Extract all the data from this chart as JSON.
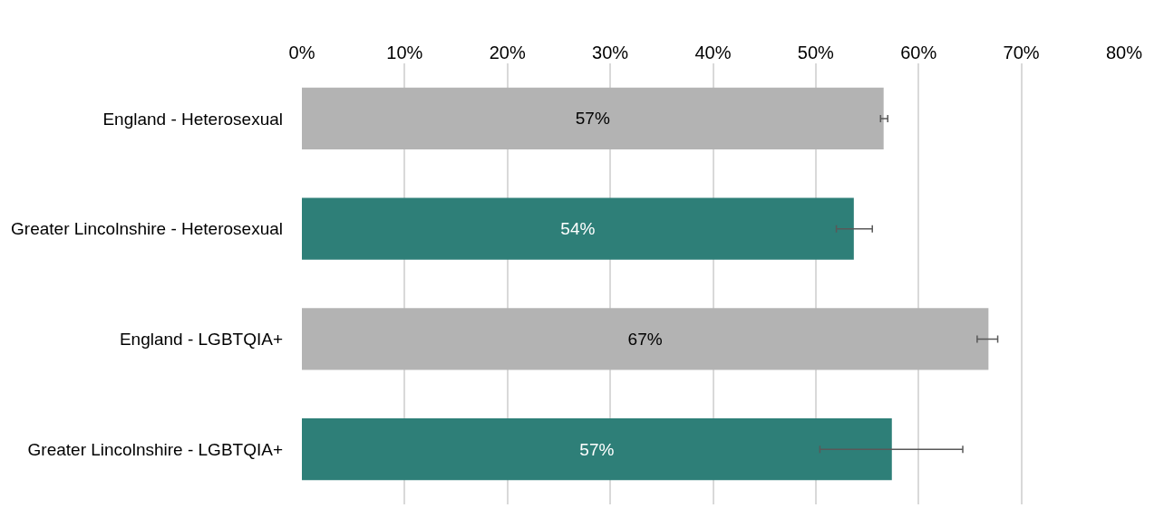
{
  "chart_data": {
    "type": "bar",
    "orientation": "horizontal",
    "categories": [
      "England - Heterosexual",
      "Greater Lincolnshire - Heterosexual",
      "England - LGBTQIA+",
      "Greater Lincolnshire - LGBTQIA+"
    ],
    "values": [
      56.6,
      53.7,
      66.8,
      57.4
    ],
    "colors": [
      "#b3b3b3",
      "#2e7f78",
      "#b3b3b3",
      "#2e7f78"
    ],
    "value_labels": [
      "57%",
      "54%",
      "67%",
      "57%"
    ],
    "errors": [
      [
        56.3,
        57.0
      ],
      [
        52.0,
        55.5
      ],
      [
        65.7,
        67.7
      ],
      [
        50.4,
        64.3
      ]
    ],
    "xlim": [
      0,
      80
    ],
    "xticks": [
      {
        "value": 0,
        "label": "0%"
      },
      {
        "value": 10,
        "label": "10%"
      },
      {
        "value": 20,
        "label": "20%"
      },
      {
        "value": 30,
        "label": "30%"
      },
      {
        "value": 40,
        "label": "40%"
      },
      {
        "value": 50,
        "label": "50%"
      },
      {
        "value": 60,
        "label": "60%"
      },
      {
        "value": 70,
        "label": "70%"
      },
      {
        "value": 80,
        "label": "80%"
      }
    ],
    "grid": "x",
    "legend": false
  }
}
